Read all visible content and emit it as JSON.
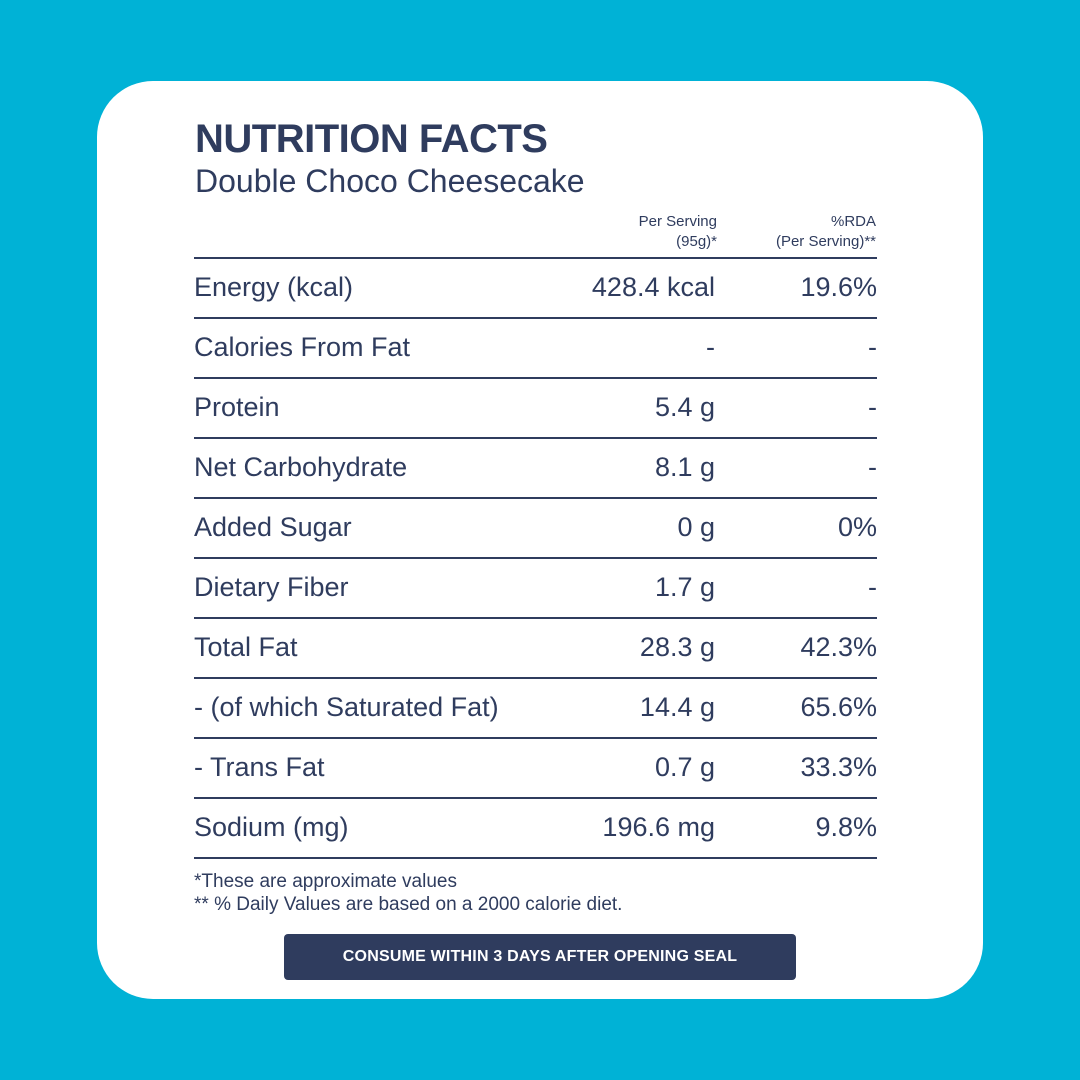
{
  "header": {
    "title": "NUTRITION FACTS",
    "subtitle": "Double Choco Cheesecake"
  },
  "columns": {
    "per_serving_line1": "Per Serving",
    "per_serving_line2": "(95g)*",
    "rda_line1": "%RDA",
    "rda_line2": "(Per Serving)**"
  },
  "rows": [
    {
      "label": "Energy (kcal)",
      "amount": "428.4 kcal",
      "rda": "19.6%"
    },
    {
      "label": "Calories From Fat",
      "amount": "-",
      "rda": "-"
    },
    {
      "label": "Protein",
      "amount": "5.4 g",
      "rda": "-"
    },
    {
      "label": "Net Carbohydrate",
      "amount": "8.1 g",
      "rda": "-"
    },
    {
      "label": "Added Sugar",
      "amount": "0 g",
      "rda": "0%"
    },
    {
      "label": "Dietary Fiber",
      "amount": "1.7 g",
      "rda": "-"
    },
    {
      "label": "Total Fat",
      "amount": "28.3 g",
      "rda": "42.3%"
    },
    {
      "label": "- (of which Saturated Fat)",
      "amount": "14.4 g",
      "rda": "65.6%"
    },
    {
      "label": "- Trans Fat",
      "amount": "0.7 g",
      "rda": "33.3%"
    },
    {
      "label": "Sodium (mg)",
      "amount": "196.6 mg",
      "rda": "9.8%"
    }
  ],
  "notes": {
    "line1": "*These are approximate values",
    "line2": "** % Daily Values are based on a 2000 calorie diet."
  },
  "banner": "CONSUME WITHIN 3 DAYS AFTER OPENING SEAL",
  "colors": {
    "background": "#00b2d6",
    "card": "#ffffff",
    "text": "#2f3c5e"
  }
}
